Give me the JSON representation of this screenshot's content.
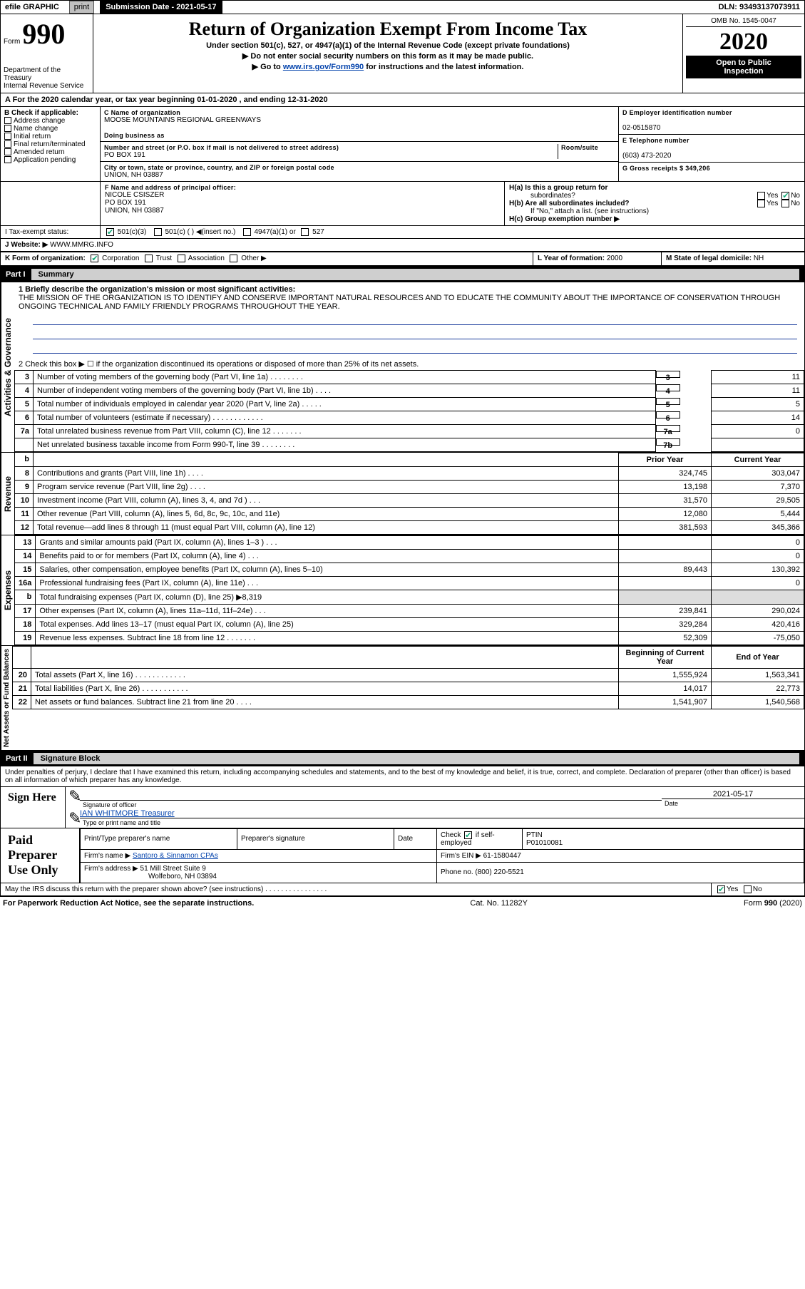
{
  "topbar": {
    "efile": "efile GRAPHIC",
    "print": "print",
    "submission_label": "Submission Date - 2021-05-17",
    "dln": "DLN: 93493137073911"
  },
  "header": {
    "form_prefix": "Form",
    "form_number": "990",
    "title": "Return of Organization Exempt From Income Tax",
    "subtitle": "Under section 501(c), 527, or 4947(a)(1) of the Internal Revenue Code (except private foundations)",
    "note1": "Do not enter social security numbers on this form as it may be made public.",
    "note2_pre": "Go to ",
    "note2_link": "www.irs.gov/Form990",
    "note2_post": " for instructions and the latest information.",
    "dept1": "Department of the Treasury",
    "dept2": "Internal Revenue Service",
    "omb": "OMB No. 1545-0047",
    "year": "2020",
    "inspect1": "Open to Public",
    "inspect2": "Inspection"
  },
  "period": "A For the 2020 calendar year, or tax year beginning 01-01-2020    , and ending 12-31-2020",
  "blockB": {
    "head": "B Check if applicable:",
    "items": [
      "Address change",
      "Name change",
      "Initial return",
      "Final return/terminated",
      "Amended return",
      "Application pending"
    ]
  },
  "blockC": {
    "name_lbl": "C Name of organization",
    "name": "MOOSE MOUNTAINS REGIONAL GREENWAYS",
    "dba_lbl": "Doing business as",
    "addr_lbl": "Number and street (or P.O. box if mail is not delivered to street address)",
    "room_lbl": "Room/suite",
    "addr": "PO BOX 191",
    "city_lbl": "City or town, state or province, country, and ZIP or foreign postal code",
    "city": "UNION, NH   03887"
  },
  "blockD": {
    "lbl": "D Employer identification number",
    "ein": "02-0515870"
  },
  "blockE": {
    "lbl": "E Telephone number",
    "tel": "(603) 473-2020"
  },
  "blockG": {
    "lbl": "G Gross receipts $ 349,206"
  },
  "blockF": {
    "lbl": "F  Name and address of principal officer:",
    "name": "NICOLE CSISZER",
    "addr1": "PO BOX 191",
    "addr2": "UNION, NH   03887"
  },
  "blockH": {
    "a": "H(a)  Is this a group return for",
    "a2": "subordinates?",
    "b": "H(b)  Are all subordinates included?",
    "bnote": "If \"No,\" attach a list. (see instructions)",
    "c": "H(c)  Group exemption number ▶"
  },
  "statusRow": {
    "I_lbl": "I  Tax-exempt status:",
    "c501c3": "501(c)(3)",
    "c501c": "501(c) (   ) ◀(insert no.)",
    "c4947": "4947(a)(1) or",
    "c527": "527",
    "J_lbl": "J  Website: ▶",
    "J_val": "WWW.MMRG.INFO"
  },
  "orgRow": {
    "K": "K Form of organization:",
    "corp": "Corporation",
    "trust": "Trust",
    "assoc": "Association",
    "other": "Other ▶",
    "L_lbl": "L Year of formation:",
    "L_val": "2000",
    "M_lbl": "M State of legal domicile:",
    "M_val": "NH"
  },
  "part1": {
    "hdr_num": "Part I",
    "hdr_title": "Summary",
    "line1_lbl": "1  Briefly describe the organization's mission or most significant activities:",
    "line1_txt": "THE MISSION OF THE ORGANIZATION IS TO IDENTIFY AND CONSERVE IMPORTANT NATURAL RESOURCES AND TO EDUCATE THE COMMUNITY ABOUT THE IMPORTANCE OF CONSERVATION THROUGH ONGOING TECHNICAL AND FAMILY FRIENDLY PROGRAMS THROUGHOUT THE YEAR.",
    "line2": "2   Check this box ▶ ☐ if the organization discontinued its operations or disposed of more than 25% of its net assets.",
    "groups": {
      "gov": "Activities & Governance",
      "rev": "Revenue",
      "exp": "Expenses",
      "net": "Net Assets or Fund Balances"
    },
    "single_rows": [
      {
        "n": "3",
        "t": "Number of voting members of the governing body (Part VI, line 1a)   .    .    .    .    .    .    .    .",
        "b": "3",
        "v": "11"
      },
      {
        "n": "4",
        "t": "Number of independent voting members of the governing body (Part VI, line 1b)  .    .    .    .",
        "b": "4",
        "v": "11"
      },
      {
        "n": "5",
        "t": "Total number of individuals employed in calendar year 2020 (Part V, line 2a)  .    .    .    .    .",
        "b": "5",
        "v": "5"
      },
      {
        "n": "6",
        "t": "Total number of volunteers (estimate if necessary)   .    .    .    .    .    .    .    .    .    .    .    .",
        "b": "6",
        "v": "14"
      },
      {
        "n": "7a",
        "t": "Total unrelated business revenue from Part VIII, column (C), line 12  .    .    .    .    .    .    .",
        "b": "7a",
        "v": "0"
      },
      {
        "n": "",
        "t": "Net unrelated business taxable income from Form 990-T, line 39   .    .    .    .    .    .    .    .",
        "b": "7b",
        "v": ""
      }
    ],
    "twocol_hdr": {
      "prior": "Prior Year",
      "curr": "Current Year"
    },
    "rev_rows": [
      {
        "n": "8",
        "t": "Contributions and grants (Part VIII, line 1h)  .    .    .    .",
        "p": "324,745",
        "c": "303,047"
      },
      {
        "n": "9",
        "t": "Program service revenue (Part VIII, line 2g)   .    .    .    .",
        "p": "13,198",
        "c": "7,370"
      },
      {
        "n": "10",
        "t": "Investment income (Part VIII, column (A), lines 3, 4, and 7d )  .    .    .",
        "p": "31,570",
        "c": "29,505"
      },
      {
        "n": "11",
        "t": "Other revenue (Part VIII, column (A), lines 5, 6d, 8c, 9c, 10c, and 11e)",
        "p": "12,080",
        "c": "5,444"
      },
      {
        "n": "12",
        "t": "Total revenue—add lines 8 through 11 (must equal Part VIII, column (A), line 12)",
        "p": "381,593",
        "c": "345,366"
      }
    ],
    "exp_rows": [
      {
        "n": "13",
        "t": "Grants and similar amounts paid (Part IX, column (A), lines 1–3 )  .    .    .",
        "p": "",
        "c": "0"
      },
      {
        "n": "14",
        "t": "Benefits paid to or for members (Part IX, column (A), line 4)  .    .    .",
        "p": "",
        "c": "0"
      },
      {
        "n": "15",
        "t": "Salaries, other compensation, employee benefits (Part IX, column (A), lines 5–10)",
        "p": "89,443",
        "c": "130,392"
      },
      {
        "n": "16a",
        "t": "Professional fundraising fees (Part IX, column (A), line 11e)  .    .    .",
        "p": "",
        "c": "0"
      },
      {
        "n": "b",
        "t": "Total fundraising expenses (Part IX, column (D), line 25) ▶8,319",
        "p": "shade",
        "c": "shade"
      },
      {
        "n": "17",
        "t": "Other expenses (Part IX, column (A), lines 11a–11d, 11f–24e)  .    .    .",
        "p": "239,841",
        "c": "290,024"
      },
      {
        "n": "18",
        "t": "Total expenses. Add lines 13–17 (must equal Part IX, column (A), line 25)",
        "p": "329,284",
        "c": "420,416"
      },
      {
        "n": "19",
        "t": "Revenue less expenses. Subtract line 18 from line 12  .    .    .    .    .    .    .",
        "p": "52,309",
        "c": "-75,050"
      }
    ],
    "net_hdr": {
      "prior": "Beginning of Current Year",
      "curr": "End of Year"
    },
    "net_rows": [
      {
        "n": "20",
        "t": "Total assets (Part X, line 16)  .    .    .    .    .    .    .    .    .    .    .    .",
        "p": "1,555,924",
        "c": "1,563,341"
      },
      {
        "n": "21",
        "t": "Total liabilities (Part X, line 26)  .    .    .    .    .    .    .    .    .    .    .",
        "p": "14,017",
        "c": "22,773"
      },
      {
        "n": "22",
        "t": "Net assets or fund balances. Subtract line 21 from line 20  .    .    .    .",
        "p": "1,541,907",
        "c": "1,540,568"
      }
    ]
  },
  "part2": {
    "hdr_num": "Part II",
    "hdr_title": "Signature Block",
    "decl": "Under penalties of perjury, I declare that I have examined this return, including accompanying schedules and statements, and to the best of my knowledge and belief, it is true, correct, and complete. Declaration of preparer (other than officer) is based on all information of which preparer has any knowledge.",
    "sign_here": "Sign Here",
    "sig_off_lbl": "Signature of officer",
    "sig_date": "2021-05-17",
    "date_lbl": "Date",
    "officer": "IAN WHITMORE  Treasurer",
    "officer_lbl": "Type or print name and title",
    "paid": "Paid Preparer Use Only",
    "prep_name_lbl": "Print/Type preparer's name",
    "prep_sig_lbl": "Preparer's signature",
    "prep_date_lbl": "Date",
    "check_if": "Check",
    "check_if2": "if self-employed",
    "ptin_lbl": "PTIN",
    "ptin": "P01010081",
    "firm_name_lbl": "Firm's name   ▶",
    "firm_name": "Santoro & Sinnamon CPAs",
    "firm_ein_lbl": "Firm's EIN ▶",
    "firm_ein": "61-1580447",
    "firm_addr_lbl": "Firm's address ▶",
    "firm_addr1": "51 Mill Street Suite 9",
    "firm_addr2": "Wolfeboro, NH   03894",
    "phone_lbl": "Phone no.",
    "phone": "(800) 220-5521",
    "discuss": "May the IRS discuss this return with the preparer shown above? (see instructions)   .    .    .    .    .    .    .    .    .    .    .    .    .    .    .    ."
  },
  "footer": {
    "left": "For Paperwork Reduction Act Notice, see the separate instructions.",
    "mid": "Cat. No. 11282Y",
    "right": "Form 990 (2020)"
  },
  "colors": {
    "accent": "#1a7f3a",
    "blue_underline": "#1a3c9c"
  }
}
